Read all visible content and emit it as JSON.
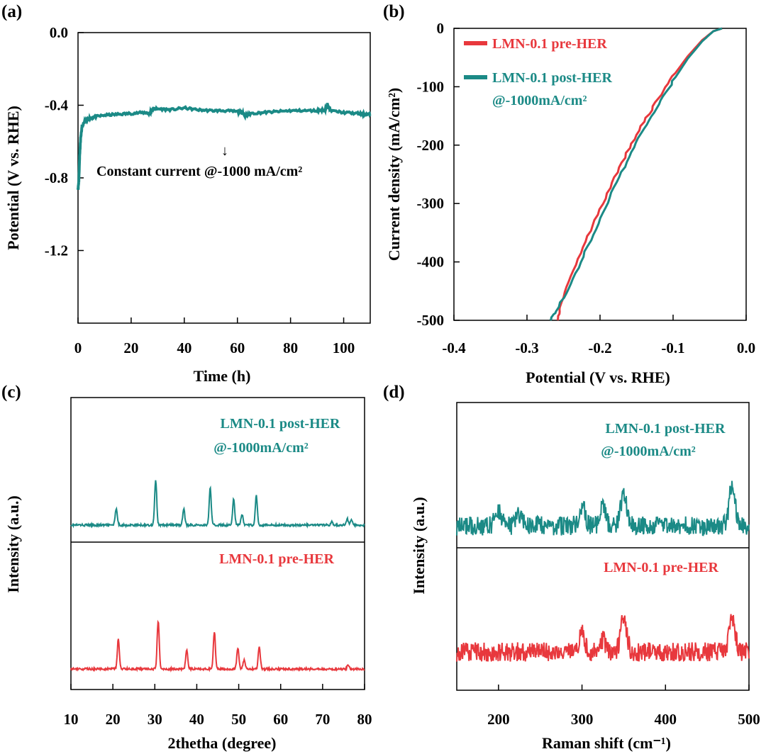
{
  "colors": {
    "teal": "#1b8a86",
    "red": "#e8383d",
    "black": "#000000"
  },
  "chart_data": [
    {
      "panel": "(a)",
      "type": "line",
      "xlabel": "Time (h)",
      "ylabel": "Potential (V vs. RHE)",
      "xlim": [
        0,
        110
      ],
      "ylim": [
        -1.6,
        0.0
      ],
      "xticks": [
        "0",
        "20",
        "40",
        "60",
        "80",
        "100"
      ],
      "yticks": [
        "0.0",
        "-0.4",
        "-0.8",
        "-1.2"
      ],
      "annotation": "Constant current @-1000 mA/cm²",
      "annotation_marker": "↓",
      "series": [
        {
          "name": "LMN-0.1",
          "color": "#1b8a86",
          "x": [
            0,
            0.3,
            0.6,
            1,
            1.5,
            2.5,
            4,
            6,
            10,
            15,
            20,
            25,
            27,
            28,
            30,
            35,
            40,
            45,
            50,
            55,
            60,
            62,
            63,
            65,
            70,
            75,
            80,
            85,
            90,
            93,
            94,
            95,
            100,
            105,
            108,
            110
          ],
          "y": [
            -0.86,
            -0.82,
            -0.68,
            -0.58,
            -0.52,
            -0.49,
            -0.475,
            -0.465,
            -0.455,
            -0.45,
            -0.445,
            -0.44,
            -0.445,
            -0.42,
            -0.42,
            -0.425,
            -0.415,
            -0.425,
            -0.43,
            -0.43,
            -0.435,
            -0.44,
            -0.46,
            -0.445,
            -0.44,
            -0.435,
            -0.43,
            -0.43,
            -0.43,
            -0.425,
            -0.395,
            -0.43,
            -0.44,
            -0.445,
            -0.45,
            -0.45
          ]
        }
      ]
    },
    {
      "panel": "(b)",
      "type": "line",
      "xlabel": "Potential (V vs. RHE)",
      "ylabel": "Current density (mA/cm²)",
      "xlim": [
        -0.4,
        0.0
      ],
      "ylim": [
        -500,
        0
      ],
      "xticks": [
        "-0.4",
        "-0.3",
        "-0.2",
        "-0.1",
        "0.0"
      ],
      "yticks": [
        "0",
        "-100",
        "-200",
        "-300",
        "-400",
        "-500"
      ],
      "legend": [
        "LMN-0.1 pre-HER",
        "LMN-0.1 post-HER",
        "@-1000mA/cm²"
      ],
      "series": [
        {
          "name": "LMN-0.1 pre-HER",
          "color": "#e8383d",
          "x": [
            -0.033,
            -0.045,
            -0.06,
            -0.08,
            -0.1,
            -0.12,
            -0.14,
            -0.16,
            -0.18,
            -0.2,
            -0.22,
            -0.24,
            -0.255,
            -0.258
          ],
          "y": [
            0,
            -5,
            -20,
            -48,
            -82,
            -120,
            -160,
            -205,
            -255,
            -310,
            -365,
            -425,
            -478,
            -500
          ]
        },
        {
          "name": "LMN-0.1 post-HER",
          "color": "#1b8a86",
          "x": [
            -0.033,
            -0.045,
            -0.06,
            -0.08,
            -0.1,
            -0.12,
            -0.14,
            -0.16,
            -0.18,
            -0.2,
            -0.22,
            -0.24,
            -0.26,
            -0.268
          ],
          "y": [
            0,
            -5,
            -22,
            -52,
            -90,
            -130,
            -172,
            -220,
            -272,
            -325,
            -382,
            -438,
            -485,
            -500
          ]
        }
      ]
    },
    {
      "panel": "(c)",
      "type": "line",
      "xlabel": "2thetha (degree)",
      "ylabel": "Intensity (a.u.)",
      "xlim": [
        10,
        80
      ],
      "xticks": [
        "10",
        "20",
        "30",
        "40",
        "50",
        "60",
        "70",
        "80"
      ],
      "series": [
        {
          "name": "LMN-0.1 post-HER",
          "label_lines": [
            "LMN-0.1 post-HER",
            "@-1000mA/cm²"
          ],
          "color": "#1b8a86",
          "peaks": [
            [
              20.8,
              0.3
            ],
            [
              30.2,
              0.85
            ],
            [
              36.9,
              0.3
            ],
            [
              43.2,
              0.7
            ],
            [
              48.8,
              0.5
            ],
            [
              50.8,
              0.2
            ],
            [
              54.2,
              0.55
            ],
            [
              72.2,
              0.06
            ],
            [
              75.9,
              0.12
            ],
            [
              76.9,
              0.1
            ]
          ]
        },
        {
          "name": "LMN-0.1 pre-HER",
          "label_lines": [
            "LMN-0.1 pre-HER"
          ],
          "color": "#e8383d",
          "peaks": [
            [
              21.3,
              0.55
            ],
            [
              30.8,
              0.9
            ],
            [
              37.6,
              0.35
            ],
            [
              44.2,
              0.7
            ],
            [
              49.8,
              0.4
            ],
            [
              51.3,
              0.18
            ],
            [
              54.9,
              0.42
            ],
            [
              76.1,
              0.08
            ]
          ]
        }
      ]
    },
    {
      "panel": "(d)",
      "type": "line",
      "xlabel": "Raman shift (cm⁻¹)",
      "ylabel": "Intensity (a.u.)",
      "xlim": [
        150,
        500
      ],
      "xticks": [
        "200",
        "300",
        "400",
        "500"
      ],
      "series": [
        {
          "name": "LMN-0.1 post-HER",
          "label_lines": [
            "LMN-0.1 post-HER",
            "@-1000mA/cm²"
          ],
          "color": "#1b8a86",
          "peaks": [
            [
              200,
              0.25
            ],
            [
              225,
              0.2
            ],
            [
              300,
              0.35
            ],
            [
              325,
              0.3
            ],
            [
              350,
              0.55
            ],
            [
              480,
              0.7
            ]
          ]
        },
        {
          "name": "LMN-0.1 pre-HER",
          "label_lines": [
            "LMN-0.1 pre-HER"
          ],
          "color": "#e8383d",
          "peaks": [
            [
              300,
              0.3
            ],
            [
              325,
              0.2
            ],
            [
              350,
              0.6
            ],
            [
              480,
              0.55
            ]
          ]
        }
      ]
    }
  ]
}
